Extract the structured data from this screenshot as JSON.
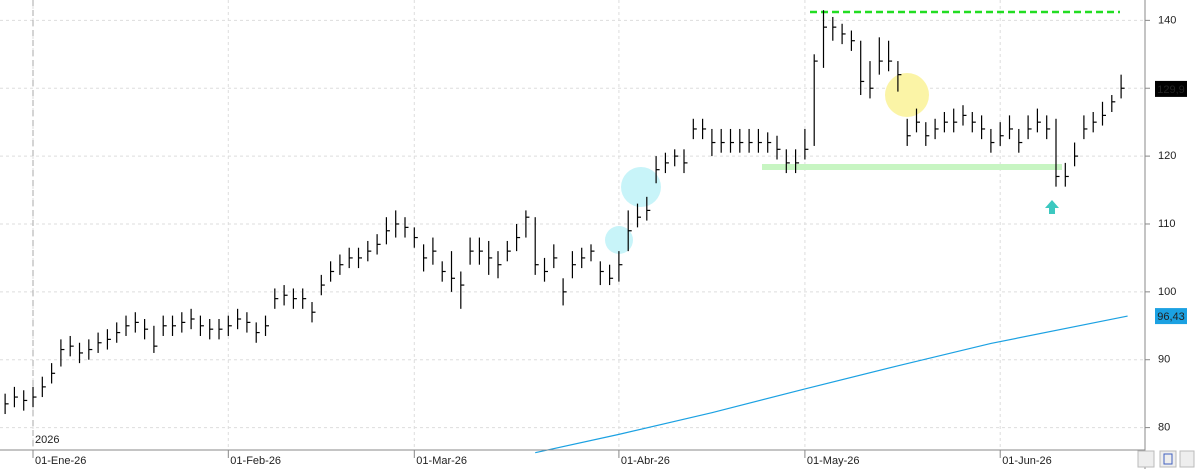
{
  "chart_data": {
    "type": "ohlc",
    "year_label": "2026",
    "x": [
      -3,
      -2,
      -1,
      0,
      1,
      2,
      3,
      4,
      5,
      6,
      7,
      8,
      9,
      10,
      11,
      12,
      13,
      14,
      15,
      16,
      17,
      18,
      19,
      20,
      21,
      22,
      23,
      24,
      25,
      26,
      27,
      28,
      29,
      30,
      31,
      32,
      33,
      34,
      35,
      36,
      37,
      38,
      39,
      40,
      41,
      42,
      43,
      44,
      45,
      46,
      47,
      48,
      49,
      50,
      51,
      52,
      53,
      54,
      55,
      56,
      57,
      58,
      59,
      60,
      61,
      62,
      63,
      64,
      65,
      66,
      67,
      68,
      69,
      70,
      71,
      72,
      73,
      74,
      75,
      76,
      77,
      78,
      79,
      80,
      81,
      82,
      83,
      84,
      85,
      86,
      87,
      88,
      89,
      90,
      91,
      92,
      93,
      94,
      95,
      96,
      97,
      98,
      99,
      100,
      101,
      102,
      103,
      104,
      105,
      106,
      107,
      108,
      109,
      110,
      111,
      112,
      113,
      114,
      115,
      116,
      117
    ],
    "high": [
      85,
      86,
      85.5,
      86,
      87.5,
      89.5,
      93,
      93.5,
      92.5,
      93,
      94,
      94.5,
      95.5,
      96.5,
      97,
      96,
      95,
      96.5,
      96.5,
      97,
      97.5,
      96.5,
      96,
      96,
      96.5,
      97.5,
      97,
      95.5,
      96.5,
      100.5,
      101,
      100.5,
      100.5,
      98.5,
      102.5,
      104.5,
      105.5,
      106.5,
      106.5,
      107.5,
      108.5,
      111,
      112,
      111,
      109.5,
      107,
      108,
      104.5,
      106,
      103,
      108,
      108,
      107.5,
      106,
      107.5,
      110,
      112,
      111,
      105,
      107,
      102,
      106,
      106.5,
      107,
      104.5,
      104,
      106,
      112,
      113,
      114,
      120,
      120.5,
      121,
      121,
      125.5,
      125.5,
      124,
      124,
      124,
      124,
      124,
      124,
      123.5,
      123,
      121,
      121,
      124,
      135,
      141.5,
      140.5,
      139.5,
      138.5,
      137,
      134,
      137.5,
      137,
      134,
      125.5,
      127,
      125,
      125.5,
      126.5,
      127,
      127.5,
      126.5,
      126,
      124,
      125,
      126,
      124,
      126,
      127,
      126,
      125.5,
      119,
      122,
      126,
      126.5,
      128,
      129,
      132
    ],
    "low": [
      82,
      83,
      82.5,
      83,
      84.5,
      86.5,
      89,
      90.5,
      89.5,
      90,
      91,
      91.5,
      92.5,
      93.5,
      94,
      93,
      91,
      93.5,
      93.5,
      94,
      94.5,
      93.5,
      93,
      93,
      93.5,
      94.5,
      94,
      92.5,
      93.5,
      97.5,
      98,
      97.5,
      97.5,
      95.5,
      99.5,
      101.5,
      102.5,
      103.5,
      103.5,
      104.5,
      105.5,
      107,
      108,
      108,
      106.5,
      103,
      104,
      101.5,
      100,
      97.5,
      104,
      104,
      102.5,
      102,
      104.5,
      106,
      108,
      102.5,
      101.5,
      103.5,
      98,
      102,
      103.5,
      104.5,
      101,
      101,
      101.5,
      106,
      109.5,
      110.5,
      116,
      117.5,
      118.5,
      117.5,
      122.5,
      122.5,
      120,
      120.5,
      120.5,
      120.5,
      120.5,
      120.5,
      120.5,
      119.5,
      117.5,
      117.5,
      119.5,
      121.5,
      133,
      137,
      136.5,
      135.5,
      129,
      128.5,
      132,
      132.5,
      129.5,
      121.5,
      123.5,
      121.5,
      122.5,
      123.5,
      123.5,
      124.5,
      123.5,
      122.5,
      120.5,
      121.5,
      122.5,
      120.5,
      122.5,
      123.5,
      122.5,
      115.5,
      115.5,
      118.5,
      122.5,
      123.5,
      124.5,
      126.5,
      128.5
    ],
    "close": [
      83.5,
      84.5,
      84,
      84.5,
      86,
      88,
      91.5,
      92,
      91,
      91.5,
      92.5,
      93,
      94,
      95,
      95.5,
      94.5,
      92,
      95,
      95,
      95.5,
      96,
      95,
      94.5,
      94.5,
      95,
      96,
      95.5,
      94,
      95,
      99,
      99.5,
      99,
      99,
      97,
      101,
      103,
      104,
      105,
      105,
      106,
      107,
      109,
      110,
      109.5,
      108,
      105,
      106,
      103,
      102,
      101,
      106,
      106,
      105,
      104,
      106,
      108,
      111,
      104,
      103,
      105,
      100,
      104,
      105,
      106,
      103,
      102,
      104,
      109,
      111,
      112,
      118,
      119,
      120,
      119,
      124,
      124,
      122,
      122,
      122,
      122,
      122,
      122,
      122,
      121,
      119,
      119,
      121,
      134,
      139,
      139,
      138,
      137,
      131,
      130,
      134,
      134,
      132,
      123,
      125,
      123,
      124,
      125,
      125,
      126,
      125,
      124,
      122,
      123,
      124,
      122,
      124,
      125,
      124,
      117,
      117,
      120,
      124,
      125,
      126,
      128,
      130
    ],
    "color": "#000000",
    "last_price": {
      "value": 129.9,
      "label": "129,9"
    },
    "moving_average": {
      "color": "#1ba1e2",
      "x": [
        54,
        63,
        73,
        83,
        93,
        103,
        117.7
      ],
      "values": [
        76.3,
        79,
        82.2,
        85.7,
        89.1,
        92.4,
        96.43
      ],
      "last": {
        "value": 96.43,
        "label": "96,43"
      }
    },
    "xlim": [
      -3.55,
      119.57
    ],
    "xticks": [
      {
        "value": 0,
        "label": "01-Ene-26"
      },
      {
        "value": 21,
        "label": "01-Feb-26"
      },
      {
        "value": 41,
        "label": "01-Mar-26"
      },
      {
        "value": 63,
        "label": "01-Abr-26"
      },
      {
        "value": 83,
        "label": "01-May-26"
      },
      {
        "value": 104,
        "label": "01-Jun-26"
      }
    ],
    "ylim": [
      76.7,
      143
    ],
    "yticks": [
      80,
      90,
      100,
      110,
      120,
      130,
      140
    ],
    "grid": true
  }
}
